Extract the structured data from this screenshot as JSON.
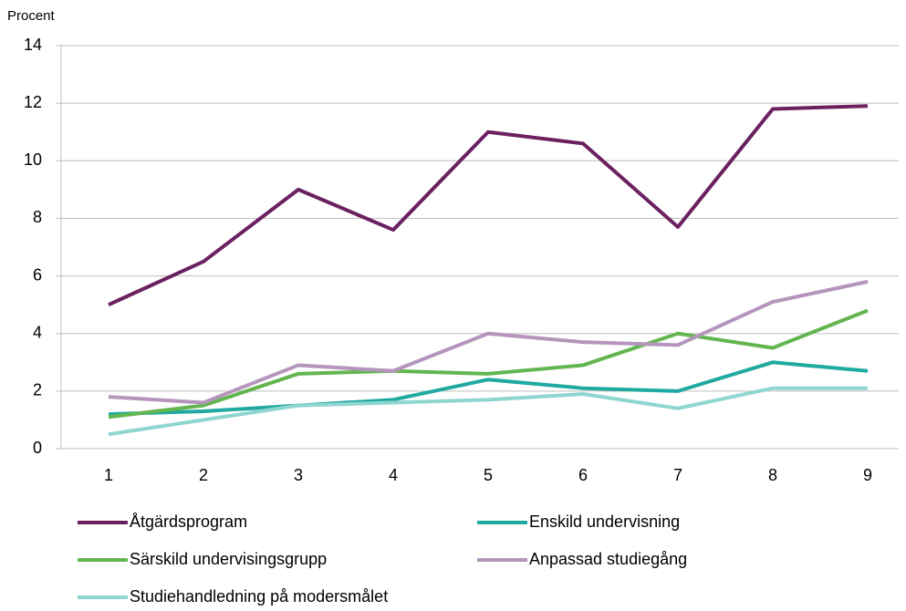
{
  "chart_data": {
    "type": "line",
    "y_label": "Procent",
    "categories": [
      "1",
      "2",
      "3",
      "4",
      "5",
      "6",
      "7",
      "8",
      "9"
    ],
    "series": [
      {
        "name": "Åtgärdsprogram",
        "color": "#6b2160",
        "values": [
          5.0,
          6.5,
          9.0,
          7.6,
          11.0,
          10.6,
          7.7,
          11.8,
          11.9
        ]
      },
      {
        "name": "Enskild undervisning",
        "color": "#1fa9a0",
        "values": [
          1.2,
          1.3,
          1.5,
          1.7,
          2.4,
          2.1,
          2.0,
          3.0,
          2.7
        ]
      },
      {
        "name": "Särskild undervisingsgrupp",
        "color": "#63b550",
        "values": [
          1.1,
          1.5,
          2.6,
          2.7,
          2.6,
          2.9,
          4.0,
          3.5,
          4.8
        ]
      },
      {
        "name": "Anpassad studiegång",
        "color": "#b595bc",
        "values": [
          1.8,
          1.6,
          2.9,
          2.7,
          4.0,
          3.7,
          3.6,
          5.1,
          5.8
        ]
      },
      {
        "name": "Studiehandledning på modersmålet",
        "color": "#8fd5d0",
        "values": [
          0.5,
          1.0,
          1.5,
          1.6,
          1.7,
          1.9,
          1.4,
          2.1,
          2.1
        ]
      }
    ],
    "ylim": [
      0,
      14
    ],
    "yticks": [
      0,
      2,
      4,
      6,
      8,
      10,
      12,
      14
    ],
    "grid": true,
    "legend": "bottom"
  }
}
